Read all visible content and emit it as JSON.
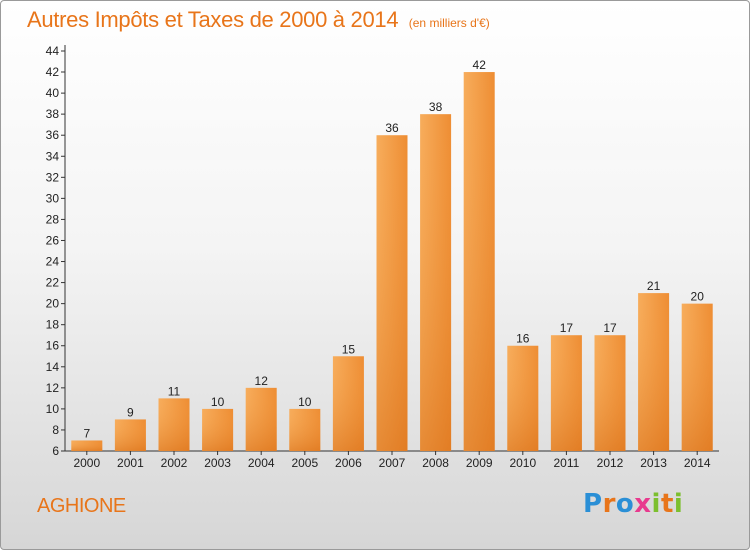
{
  "title": "Autres Impôts et Taxes de 2000 à 2014",
  "unit": "(en milliers d'€)",
  "location": "AGHIONE",
  "logo": {
    "letters": [
      "P",
      "r",
      "o",
      "x",
      "i",
      "t",
      "i"
    ],
    "colors": [
      "#2a8fd6",
      "#e8751a",
      "#2a8fd6",
      "#e83a8e",
      "#7cbf2e",
      "#e8751a",
      "#7cbf2e"
    ]
  },
  "colors": {
    "bar_light": "#f6a650",
    "bar_dark": "#e0781e",
    "text_accent": "#e8751a"
  },
  "chart_data": {
    "type": "bar",
    "title": "Autres Impôts et Taxes de 2000 à 2014",
    "categories": [
      "2000",
      "2001",
      "2002",
      "2003",
      "2004",
      "2005",
      "2006",
      "2007",
      "2008",
      "2009",
      "2010",
      "2011",
      "2012",
      "2013",
      "2014"
    ],
    "values": [
      7,
      9,
      11,
      10,
      12,
      10,
      15,
      36,
      38,
      42,
      16,
      17,
      17,
      21,
      20
    ],
    "ylim": [
      6,
      44
    ],
    "yticks": [
      6,
      8,
      10,
      12,
      14,
      16,
      18,
      20,
      22,
      24,
      26,
      28,
      30,
      32,
      34,
      36,
      38,
      40,
      42,
      44
    ],
    "grid": false,
    "legend": "none"
  }
}
